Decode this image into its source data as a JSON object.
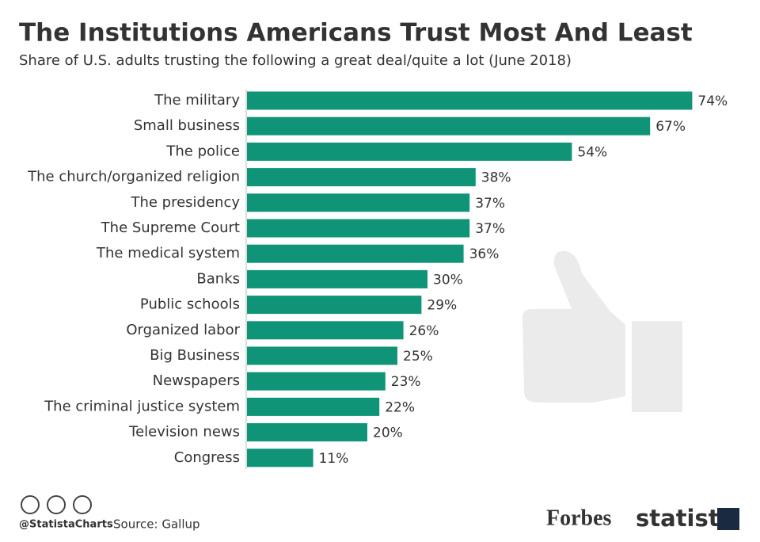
{
  "chart_data": {
    "type": "bar",
    "orientation": "horizontal",
    "title": "The Institutions Americans Trust Most And Least",
    "subtitle": "Share of U.S. adults trusting the following a great deal/quite a lot (June 2018)",
    "categories": [
      "The military",
      "Small business",
      "The police",
      "The church/organized religion",
      "The presidency",
      "The Supreme Court",
      "The medical system",
      "Banks",
      "Public schools",
      "Organized labor",
      "Big Business",
      "Newspapers",
      "The criminal justice system",
      "Television news",
      "Congress"
    ],
    "values": [
      74,
      67,
      54,
      38,
      37,
      37,
      36,
      30,
      29,
      26,
      25,
      23,
      22,
      20,
      11
    ],
    "value_labels": [
      "74%",
      "67%",
      "54%",
      "38%",
      "37%",
      "37%",
      "36%",
      "30%",
      "29%",
      "26%",
      "25%",
      "23%",
      "22%",
      "20%",
      "11%"
    ],
    "color": "#0f9477"
  },
  "footer": {
    "handle": "@StatistaCharts",
    "source": "Source: Gallup",
    "logos": [
      "Forbes",
      "statista"
    ]
  }
}
